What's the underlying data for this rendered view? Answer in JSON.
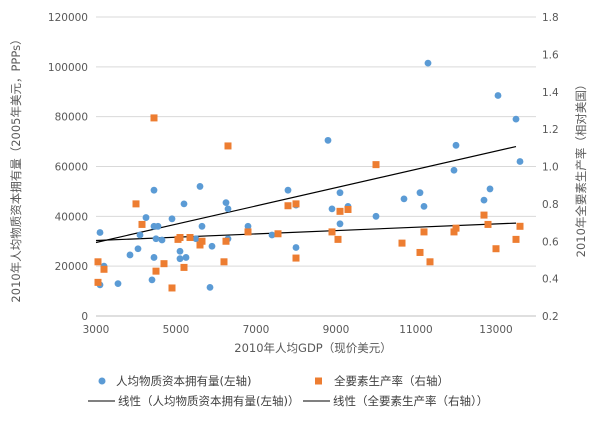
{
  "chart_data": {
    "type": "scatter",
    "title": "",
    "xlabel": "2010年人均GDP（现价美元）",
    "ylabel_left": "2010年人均物质资本拥有量（2005年美元，PPPs）",
    "ylabel_right": "2010年全要素生产率（相对美国）",
    "xlim": [
      3000,
      14000
    ],
    "ylim_left": [
      0,
      120000
    ],
    "ylim_right": [
      0.2,
      1.8
    ],
    "x_ticks": [
      3000,
      5000,
      7000,
      9000,
      11000,
      13000
    ],
    "y_ticks_left": [
      0,
      20000,
      40000,
      60000,
      80000,
      100000,
      120000
    ],
    "y_ticks_right": [
      0.2,
      0.4,
      0.6,
      0.8,
      1.0,
      1.2,
      1.4,
      1.6,
      1.8
    ],
    "grid": "horizontal",
    "legend_position": "bottom",
    "colors": {
      "capital": "#5B9BD5",
      "tfp": "#ED7D31",
      "capital_trend": "#000000",
      "tfp_trend": "#000000"
    },
    "series": [
      {
        "name": "人均物质资本拥有量(左轴)",
        "axis": "left",
        "marker": "circle",
        "points": [
          [
            3100,
            33500
          ],
          [
            3100,
            12500
          ],
          [
            3200,
            20000
          ],
          [
            3550,
            13000
          ],
          [
            3850,
            24500
          ],
          [
            4050,
            27000
          ],
          [
            4100,
            32500
          ],
          [
            4250,
            39500
          ],
          [
            4400,
            14500
          ],
          [
            4450,
            23500
          ],
          [
            4450,
            36000
          ],
          [
            4450,
            50500
          ],
          [
            4500,
            31000
          ],
          [
            4550,
            36000
          ],
          [
            4650,
            30500
          ],
          [
            4900,
            39000
          ],
          [
            5100,
            23000
          ],
          [
            5100,
            26000
          ],
          [
            5200,
            45000
          ],
          [
            5250,
            23500
          ],
          [
            5500,
            31000
          ],
          [
            5600,
            52000
          ],
          [
            5650,
            36000
          ],
          [
            5850,
            11500
          ],
          [
            5900,
            28000
          ],
          [
            6250,
            45500
          ],
          [
            6300,
            31000
          ],
          [
            6300,
            43000
          ],
          [
            6800,
            36000
          ],
          [
            7400,
            32500
          ],
          [
            7800,
            50500
          ],
          [
            8000,
            27500
          ],
          [
            8000,
            44500
          ],
          [
            8800,
            70500
          ],
          [
            8900,
            43000
          ],
          [
            9100,
            37000
          ],
          [
            9100,
            49500
          ],
          [
            9300,
            44000
          ],
          [
            10000,
            40000
          ],
          [
            10700,
            47000
          ],
          [
            11100,
            49500
          ],
          [
            11200,
            44000
          ],
          [
            11300,
            101500
          ],
          [
            11950,
            58500
          ],
          [
            12000,
            68500
          ],
          [
            12700,
            46500
          ],
          [
            12850,
            51000
          ],
          [
            13050,
            88500
          ],
          [
            13500,
            79000
          ],
          [
            13600,
            62000
          ]
        ]
      },
      {
        "name": "全要素生产率（右轴）",
        "axis": "right",
        "marker": "square",
        "points": [
          [
            3050,
            0.38
          ],
          [
            3050,
            0.49
          ],
          [
            3200,
            0.45
          ],
          [
            4000,
            0.8
          ],
          [
            4150,
            0.69
          ],
          [
            4450,
            1.26
          ],
          [
            4500,
            0.44
          ],
          [
            4700,
            0.48
          ],
          [
            4900,
            0.35
          ],
          [
            5050,
            0.61
          ],
          [
            5100,
            0.62
          ],
          [
            5200,
            0.46
          ],
          [
            5350,
            0.62
          ],
          [
            5600,
            0.58
          ],
          [
            5650,
            0.6
          ],
          [
            6200,
            0.49
          ],
          [
            6250,
            0.6
          ],
          [
            6300,
            1.11
          ],
          [
            6800,
            0.65
          ],
          [
            7550,
            0.64
          ],
          [
            7800,
            0.79
          ],
          [
            8000,
            0.51
          ],
          [
            8000,
            0.8
          ],
          [
            8900,
            0.65
          ],
          [
            9050,
            0.61
          ],
          [
            9100,
            0.76
          ],
          [
            9300,
            0.77
          ],
          [
            10000,
            1.01
          ],
          [
            10650,
            0.59
          ],
          [
            11100,
            0.54
          ],
          [
            11200,
            0.65
          ],
          [
            11350,
            0.49
          ],
          [
            11950,
            0.65
          ],
          [
            12000,
            0.67
          ],
          [
            12700,
            0.74
          ],
          [
            12800,
            0.69
          ],
          [
            13000,
            0.56
          ],
          [
            13500,
            0.61
          ],
          [
            13600,
            0.68
          ]
        ]
      }
    ],
    "trendlines": [
      {
        "name": "线性（人均物质资本拥有量(左轴)）",
        "axis": "left",
        "x": [
          3000,
          13500
        ],
        "y": [
          29500,
          68000
        ]
      },
      {
        "name": "线性（全要素生产率（右轴））",
        "axis": "right",
        "x": [
          3000,
          13500
        ],
        "y": [
          0.604,
          0.697
        ]
      }
    ]
  }
}
